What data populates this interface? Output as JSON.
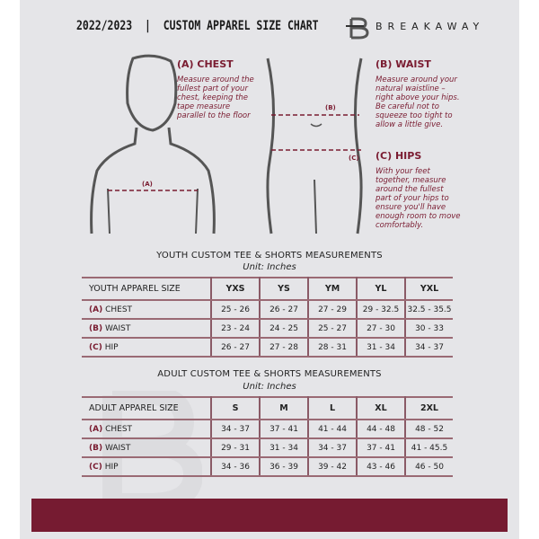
{
  "header": {
    "title": "2022/2023  |  CUSTOM APPAREL SIZE CHART",
    "brand": "BREAKAWAY"
  },
  "measures": {
    "chest": {
      "title": "(A) CHEST",
      "text": "Measure around the fullest part of your chest, keeping the tape measure parallel to the floor",
      "marker": "(A)"
    },
    "waist": {
      "title": "(B) WAIST",
      "text": "Measure around your natural waistline – right above your hips. Be careful not to squeeze too tight to allow a little give.",
      "marker": "(B)"
    },
    "hips": {
      "title": "(C) HIPS",
      "text": "With your feet together, measure around the fullest part of your hips to ensure you'll have enough room to move comfortably.",
      "marker": "(C)"
    }
  },
  "youth": {
    "title": "YOUTH CUSTOM TEE & SHORTS MEASUREMENTS",
    "unit": "Unit: Inches",
    "header": [
      "YOUTH APPAREL SIZE",
      "YXS",
      "YS",
      "YM",
      "YL",
      "YXL"
    ],
    "rows": [
      {
        "code": "(A)",
        "name": "CHEST",
        "values": [
          "25 - 26",
          "26 - 27",
          "27 - 29",
          "29 - 32.5",
          "32.5 - 35.5"
        ]
      },
      {
        "code": "(B)",
        "name": "WAIST",
        "values": [
          "23 - 24",
          "24 - 25",
          "25 - 27",
          "27 - 30",
          "30 - 33"
        ]
      },
      {
        "code": "(C)",
        "name": "HIP",
        "values": [
          "26 - 27",
          "27 - 28",
          "28 - 31",
          "31 - 34",
          "34 - 37"
        ]
      }
    ]
  },
  "adult": {
    "title": "ADULT CUSTOM TEE & SHORTS MEASUREMENTS",
    "unit": "Unit: Inches",
    "header": [
      "ADULT APPAREL SIZE",
      "S",
      "M",
      "L",
      "XL",
      "2XL"
    ],
    "rows": [
      {
        "code": "(A)",
        "name": "CHEST",
        "values": [
          "34 - 37",
          "37 - 41",
          "41 - 44",
          "44 - 48",
          "48 - 52"
        ]
      },
      {
        "code": "(B)",
        "name": "WAIST",
        "values": [
          "29 - 31",
          "31 - 34",
          "34 - 37",
          "37 - 41",
          "41 - 45.5"
        ]
      },
      {
        "code": "(C)",
        "name": "HIP",
        "values": [
          "34 - 36",
          "36 - 39",
          "39 - 42",
          "43 - 46",
          "46 - 50"
        ]
      }
    ]
  },
  "colors": {
    "accent": "#7a1c31",
    "background": "#e5e5e8"
  }
}
